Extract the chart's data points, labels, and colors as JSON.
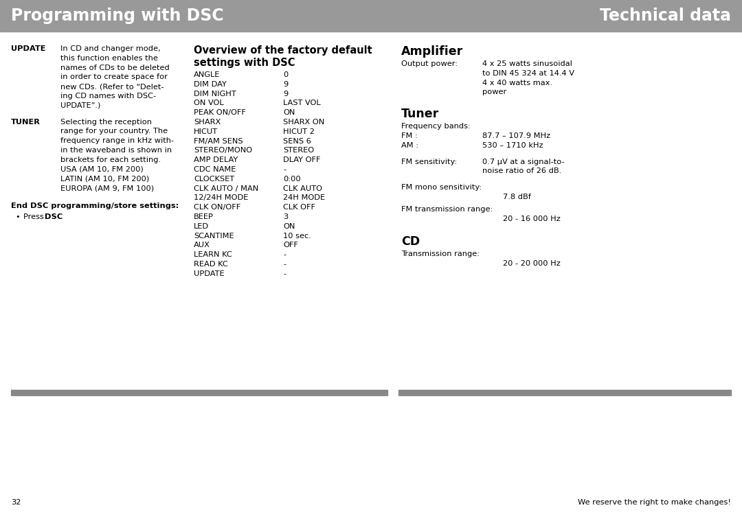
{
  "header_bg_color": "#999999",
  "header_text_color": "#FFFFFF",
  "header_left": "Programming with DSC",
  "header_right": "Technical data",
  "bg_color": "#FFFFFF",
  "text_color": "#000000",
  "separator_color": "#888888",
  "col1_header": "UPDATE",
  "col1_update_text": [
    "In CD and changer mode,",
    "this function enables the",
    "names of CDs to be deleted",
    "in order to create space for",
    "new CDs. (Refer to “Delet-",
    "ing CD names with DSC-",
    "UPDATE”.)"
  ],
  "col1_tuner_header": "TUNER",
  "col1_tuner_text": [
    "Selecting the reception",
    "range for your country. The",
    "frequency range in kHz with-",
    "in the waveband is shown in",
    "brackets for each setting.",
    "USA (AM 10, FM 200)",
    "LATIN (AM 10, FM 200)",
    "EUROPA (AM 9, FM 100)"
  ],
  "col1_end_header": "End DSC programming/store settings:",
  "col2_header_line1": "Overview of the factory default",
  "col2_header_line2": "settings with DSC",
  "dsc_settings": [
    [
      "ANGLE",
      "0"
    ],
    [
      "DIM DAY",
      "9"
    ],
    [
      "DIM NIGHT",
      "9"
    ],
    [
      "ON VOL",
      "LAST VOL"
    ],
    [
      "PEAK ON/OFF",
      "ON"
    ],
    [
      "SHARX",
      "SHARX ON"
    ],
    [
      "HICUT",
      "HICUT 2"
    ],
    [
      "FM/AM SENS",
      "SENS 6"
    ],
    [
      "STEREO/MONO",
      "STEREO"
    ],
    [
      "AMP DELAY",
      "DLAY OFF"
    ],
    [
      "CDC NAME",
      "-"
    ],
    [
      "CLOCKSET",
      "0:00"
    ],
    [
      "CLK AUTO / MAN",
      "CLK AUTO"
    ],
    [
      "12/24H MODE",
      "24H MODE"
    ],
    [
      "CLK ON/OFF",
      "CLK OFF"
    ],
    [
      "BEEP",
      "3"
    ],
    [
      "LED",
      "ON"
    ],
    [
      "SCANTIME",
      "10 sec."
    ],
    [
      "AUX",
      "OFF"
    ],
    [
      "LEARN KC",
      "-"
    ],
    [
      "READ KC",
      "-"
    ],
    [
      "UPDATE",
      "-"
    ]
  ],
  "col3_amp_header": "Amplifier",
  "col3_amp_label": "Output power:",
  "col3_amp_values": [
    "4 x 25 watts sinusoidal",
    "to DIN 45 324 at 14.4 V",
    "4 x 40 watts max.",
    "power"
  ],
  "col3_tuner_header": "Tuner",
  "col3_freq_label": "Frequency bands:",
  "col3_fm_label": "FM :",
  "col3_fm_value": "87.7 – 107.9 MHz",
  "col3_am_label": "AM :",
  "col3_am_value": "530 – 1710 kHz",
  "col3_fmsens_label": "FM sensitivity:",
  "col3_fmsens_value1": "0.7 μV at a signal-to-",
  "col3_fmsens_value2": "noise ratio of 26 dB.",
  "col3_fmmono_label": "FM mono sensitivity:",
  "col3_fmmono_value": "7.8 dBf",
  "col3_fmrange_label": "FM transmission range:",
  "col3_fmrange_value": "20 - 16 000 Hz",
  "col3_cd_header": "CD",
  "col3_cd_trans_label": "Transmission range:",
  "col3_cd_trans_value": "20 - 20 000 Hz",
  "footer_text": "We reserve the right to make changes!",
  "page_number": "32"
}
